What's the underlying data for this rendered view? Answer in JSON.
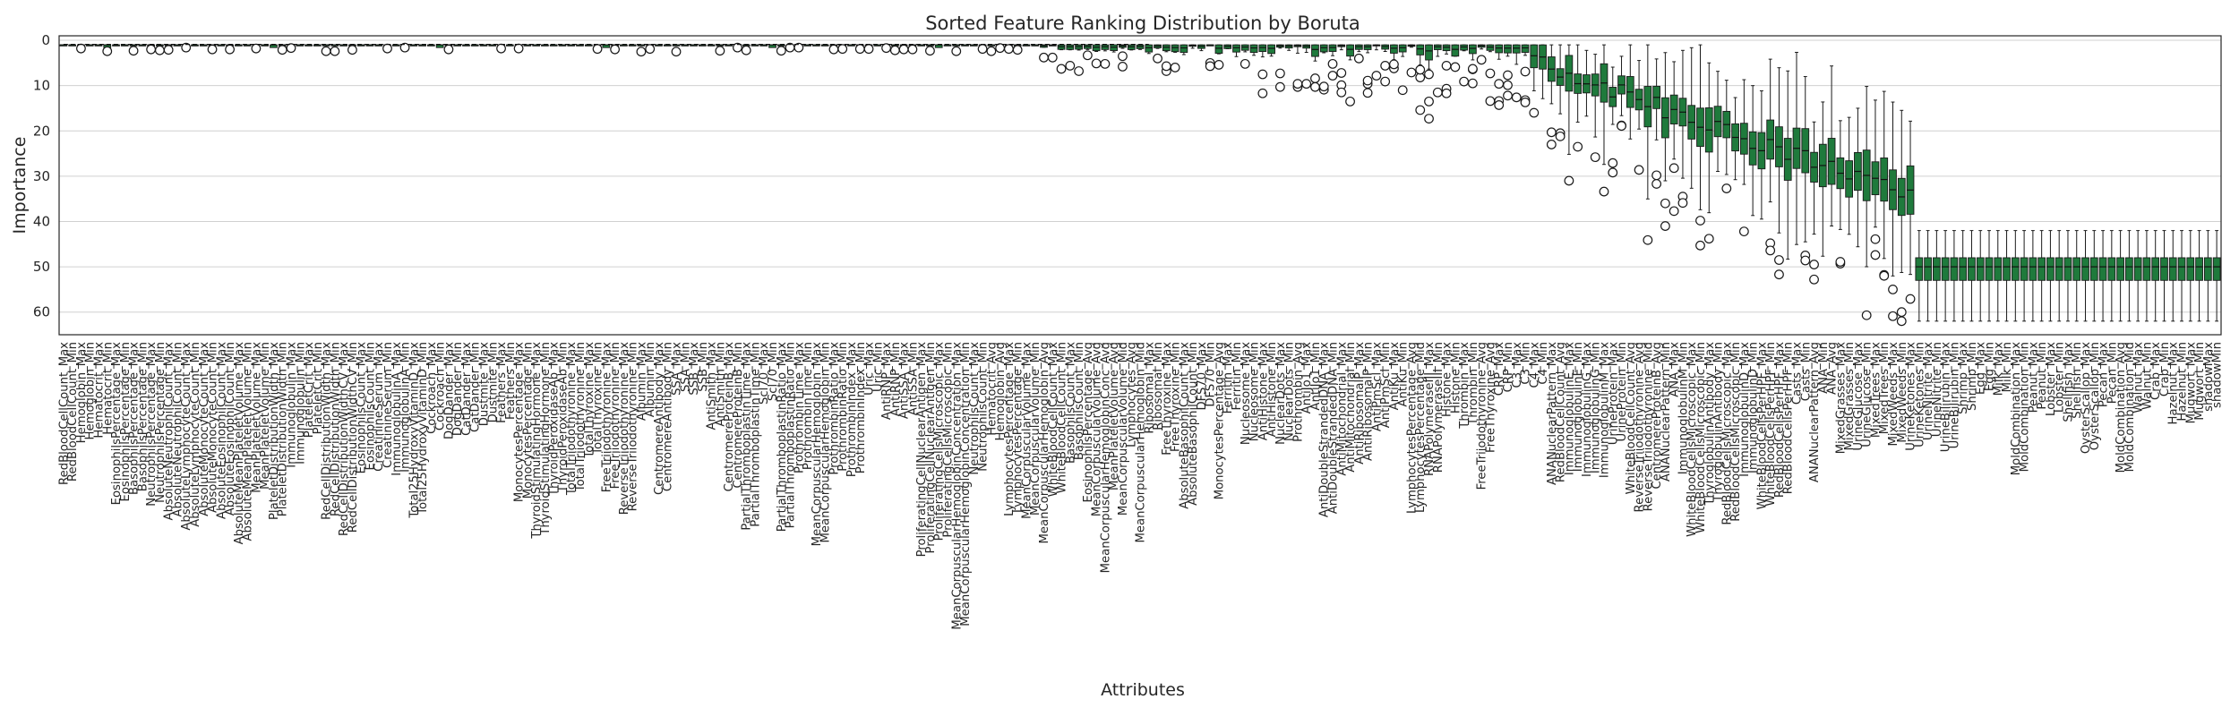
{
  "chart_data": {
    "type": "box",
    "title": "Sorted Feature Ranking Distribution by Boruta",
    "xlabel": "Attributes",
    "ylabel": "Importance",
    "ylim": [
      65,
      -1
    ],
    "y_inverted": true,
    "yticks": [
      0,
      10,
      20,
      30,
      40,
      50,
      60
    ],
    "grid": true,
    "colors": {
      "box": "#1f7a3c",
      "grid": "#d0d0d0",
      "text": "#262626"
    },
    "categories": [
      "RedBloodCellCount_Max",
      "RedBloodCellCount_Min",
      "Hemoglobin_Max",
      "Hemoglobin_Min",
      "Hematocrit_Max",
      "Hematocrit_Min",
      "EosinophilsPercentage_Max",
      "EosinophilsPercentage_Min",
      "BasophilsPercentage_Max",
      "BasophilsPercentage_Min",
      "NeutrophilsPercentage_Max",
      "NeutrophilsPercentage_Min",
      "AbsoluteNeutrophilCount_Max",
      "AbsoluteNeutrophilCount_Min",
      "AbsoluteLymphocyteCount_Max",
      "AbsoluteLymphocyteCount_Min",
      "AbsoluteMonocyteCount_Max",
      "AbsoluteMonocyteCount_Min",
      "AbsoluteEosinophilCount_Max",
      "AbsoluteEosinophilCount_Min",
      "AbsoluteMeanPlateletVolume_Max",
      "AbsoluteMeanPlateletVolume_Min",
      "MeanPlateletVolume_Max",
      "MeanPlateletVolume_Min",
      "PlateletDistributionWidth_Max",
      "PlateletDistributionWidth_Min",
      "Immunoglobulin_Max",
      "Immunoglobulin_Min",
      "PlateletCrit_Max",
      "PlateletCrit_Min",
      "RedCellDistributionWidth_Max",
      "RedCellDistributionWidth_Min",
      "RedCellDistributionWidthCV_Max",
      "RedCellDistributionWidthCV_Min",
      "EosinophilsCount_Max",
      "EosinophilsCount_Min",
      "CreatinineSerum_Max",
      "CreatinineSerum_Min",
      "ImmunoglobulinA_Max",
      "ImmunoglobulinA_Min",
      "Total25HydroxyVitaminD_Max",
      "Total25HydroxyVitaminD_Min",
      "Cockroach_Max",
      "Cockroach_Min",
      "DogDander_Max",
      "DogDander_Min",
      "CatDander_Max",
      "CatDander_Min",
      "Dustmite_Max",
      "Dustmite_Min",
      "Feathers_Max",
      "Feathers_Min",
      "MonocytesPercentage_Max",
      "MonocytesPercentage_Min",
      "ThyroidStimulatingHormone_Max",
      "ThyroidStimulatingHormone_Min",
      "ThyroidPeroxidaseAb_Max",
      "ThyroidPeroxidaseAb_Min",
      "TotalTriiodothyronine_Max",
      "TotalTriiodothyronine_Min",
      "TotalThyroxine_Max",
      "TotalThyroxine_Min",
      "FreeTriiodothyronine_Max",
      "FreeTriiodothyronine_Min",
      "ReverseTriiodothyronine_Max",
      "ReverseTriiodothyronine_Min",
      "Albumin_Max",
      "Albumin_Min",
      "CentromereAntibody_Max",
      "CentromereAntibody_Min",
      "SSA_Max",
      "SSA_Min",
      "SSB_Max",
      "SSB_Min",
      "AntiSmith_Max",
      "AntiSmith_Min",
      "CentromereProteinB_Max",
      "CentromereProteinB_Min",
      "PartialThromboplastinTime_Max",
      "PartialThromboplastinTime_Min",
      "Scl70_Max",
      "Scl70_Min",
      "PartialThromboplastinRatio_Max",
      "PartialThromboplastinRatio_Min",
      "ProthrombinTime_Max",
      "ProthrombinTime_Min",
      "MeanCorpuscularHemoglobin_Max",
      "MeanCorpuscularHemoglobin_Min",
      "ProthrombinRatio_Max",
      "ProthrombinRatio_Min",
      "ProthrombinIndex_Max",
      "ProthrombinIndex_Min",
      "Uric_Max",
      "Uric_Min",
      "AntiRNP_Max",
      "AntiRNP_Min",
      "AntiSSA_Max",
      "AntiSSA_Min",
      "ProliferatingCellNuclearAntigen_Max",
      "ProliferatingCellNuclearAntigen_Min",
      "ProliferatingCellsMicroscopic_Max",
      "ProliferatingCellsMicroscopic_Min",
      "MeanCorpuscularHemoglobinConcentration_Max",
      "MeanCorpuscularHemoglobinConcentration_Min",
      "NeutrophilsCount_Max",
      "NeutrophilsCount_Min",
      "Hematocrit_Avg",
      "Hemoglobin_Avg",
      "LymphocytesPercentage_Max",
      "LymphocytesPercentage_Min",
      "MeanCorpuscularVolume_Max",
      "MeanCorpuscularVolume_Min",
      "MeanCorpuscularHemoglobin_Avg",
      "WhiteBloodCellCount_Max",
      "WhiteBloodCellCount_Min",
      "BasophilsCount_Max",
      "BasophilsCount_Min",
      "EosinophilsPercentage_Avg",
      "MeanCorpuscularVolume_Avg",
      "MeanCorpuscularHemoglobinConc_Avg",
      "MeanPlateletVolume_Avg",
      "MeanCorpuscularVolume_Mid",
      "Lymphocytes_Avg",
      "MeanCorpuscularHemoglobin_Mid",
      "Ribosomal_Max",
      "Ribosomal_Min",
      "FreeThyroxine_Max",
      "FreeThyroxine_Min",
      "AbsoluteBasophilCount_Max",
      "AbsoluteBasophilCount_Min",
      "DFS70_Max",
      "DFS70_Min",
      "MonocytesPercentage_Avg",
      "Ferritin_Max",
      "Ferritin_Min",
      "Nucleosome_Max",
      "Nucleosome_Min",
      "AntiHistone_Max",
      "AntiHistone_Min",
      "NuclearDots_Max",
      "NuclearDots_Min",
      "Prothrombin_Avg",
      "AntiJo1_Max",
      "AntiJo1_Min",
      "AntiDoubleStrandedDNA_Max",
      "AntiDoubleStrandedDNA_Min",
      "AntiMitochondrial_Max",
      "AntiMitochondrial_Min",
      "AntiRibosomalP_Max",
      "AntiRibosomalP_Min",
      "AntiPmScl_Max",
      "AntiPmScl_Min",
      "AntiKu_Max",
      "AntiKu_Min",
      "LymphocytesPercentage_Avg",
      "LymphocytesPercentage_Mid",
      "RNAPolymeraseIII_Max",
      "RNAPolymeraseIII_Min",
      "Histone_Max",
      "Histone_Min",
      "Thrombin_Max",
      "Thrombin_Min",
      "FreeTriiodothyronine_Avg",
      "FreeThyroxine_Avg",
      "CRP_Max",
      "CRP_Min",
      "C3_Max",
      "C3_Min",
      "C4_Max",
      "C4_Min",
      "ANANuclearPattern_Max",
      "RedBloodCellCount_Avg",
      "ImmunoglobulinE_Max",
      "ImmunoglobulinE_Min",
      "ImmunoglobulinG_Max",
      "ImmunoglobulinG_Min",
      "ImmunoglobulinM_Max",
      "UrineProtein_Max",
      "UrineProtein_Min",
      "WhiteBloodCellCount_Avg",
      "ReverseTriiodothyronine_Avg",
      "ReverseTriiodothyronine_Mid",
      "CentromereProteinB_Avg",
      "ANANuclearPattern_Min",
      "ANA_Max",
      "ImmunoglobulinM_Min",
      "WhiteBloodCellsMicroscopic_Max",
      "WhiteBloodCellsMicroscopic_Min",
      "ThyroglobulinAntibody_Max",
      "ThyroglobulinAntibody_Min",
      "RedBloodCellsMicroscopic_Max",
      "RedBloodCellsMicroscopic_Min",
      "ImmunoglobulinD_Max",
      "ImmunoglobulinD_Min",
      "WhiteBloodCellsPerHPF_Max",
      "WhiteBloodCellsPerHPF_Min",
      "RedBloodCellsPerHPF_Max",
      "RedBloodCellsPerHPF_Min",
      "Casts_Max",
      "Casts_Min",
      "ANANuclearPattern_Avg",
      "ANA_Min",
      "ANA_Avg",
      "MixedGrasses_Max",
      "MixedGrasses_Min",
      "UrineGlucose_Max",
      "UrineGlucose_Min",
      "MixedTrees_Max",
      "MixedTrees_Min",
      "MixedWeeds_Max",
      "MixedWeeds_Min",
      "UrineKetones_Max",
      "UrineKetones_Min",
      "UrineNitrite_Max",
      "UrineNitrite_Min",
      "UrineBilirubin_Max",
      "UrineBilirubin_Min",
      "Shrimp_Max",
      "Shrimp_Min",
      "Egg_Max",
      "Egg_Min",
      "Milk_Max",
      "Milk_Min",
      "MoldCombination_Max",
      "MoldCombination_Min",
      "Peanut_Max",
      "Peanut_Min",
      "Lobster_Max",
      "Lobster_Min",
      "Shellfish_Max",
      "Shellfish_Min",
      "OysterScallop_Max",
      "OysterScallop_Min",
      "Pecan_Max",
      "Pecan_Min",
      "MoldCombination_Avg",
      "MoldCombination_Mid",
      "Walnut_Max",
      "Walnut_Min",
      "Crab_Max",
      "Crab_Min",
      "Hazelnut_Max",
      "Hazelnut_Min",
      "Mugwort_Max",
      "Mugwort_Min",
      "shadowMax",
      "shadowMin"
    ]
  }
}
